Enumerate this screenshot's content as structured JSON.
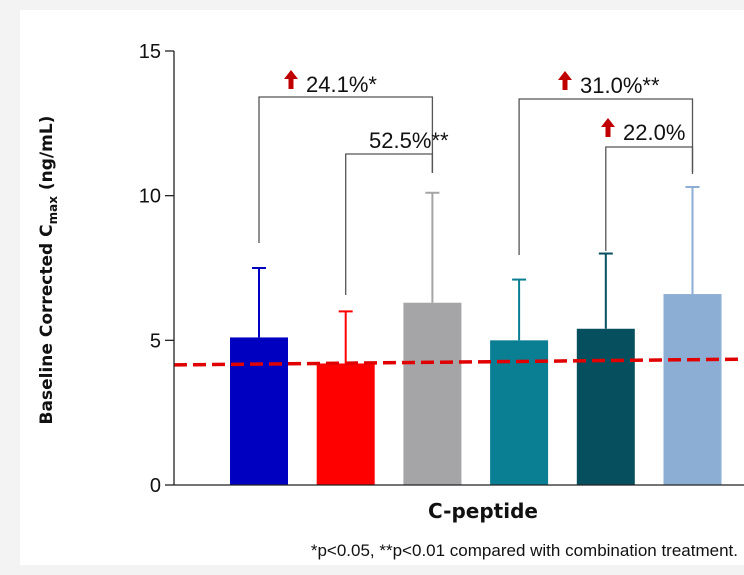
{
  "chart_data": {
    "type": "bar",
    "xlabel": "C-peptide",
    "ylabel": {
      "main": "Baseline Corrected C",
      "sub": "max",
      "unit": " (ng/mL)"
    },
    "ylim": [
      0,
      15
    ],
    "yticks": [
      "0",
      "5",
      "10",
      "15"
    ],
    "bars": [
      {
        "value": 5.1,
        "error": 2.4,
        "color": "#0000c0"
      },
      {
        "value": 4.2,
        "error": 1.8,
        "color": "#ff0000"
      },
      {
        "value": 6.3,
        "error": 3.8,
        "color": "#a5a5a8"
      },
      {
        "value": 5.0,
        "error": 2.1,
        "color": "#0a7f94"
      },
      {
        "value": 5.4,
        "error": 2.6,
        "color": "#064f5e"
      },
      {
        "value": 6.6,
        "error": 3.7,
        "color": "#8daed4"
      }
    ],
    "reference_line": {
      "y_start": 4.15,
      "y_end": 4.35,
      "color": "#e00000"
    },
    "annotations": [
      {
        "label": "24.1%*",
        "from_bar": 0,
        "to_bar": 2,
        "arrow": true
      },
      {
        "label": "52.5%**",
        "from_bar": 1,
        "to_bar": 2,
        "arrow": false
      },
      {
        "label": "31.0%**",
        "from_bar": 3,
        "to_bar": 5,
        "arrow": true
      },
      {
        "label": "22.0%",
        "from_bar": 4,
        "to_bar": 5,
        "arrow": true
      }
    ],
    "footnote": "*p<0.05, **p<0.01 compared with combination treatment.",
    "arrow_color": "#c00000"
  }
}
